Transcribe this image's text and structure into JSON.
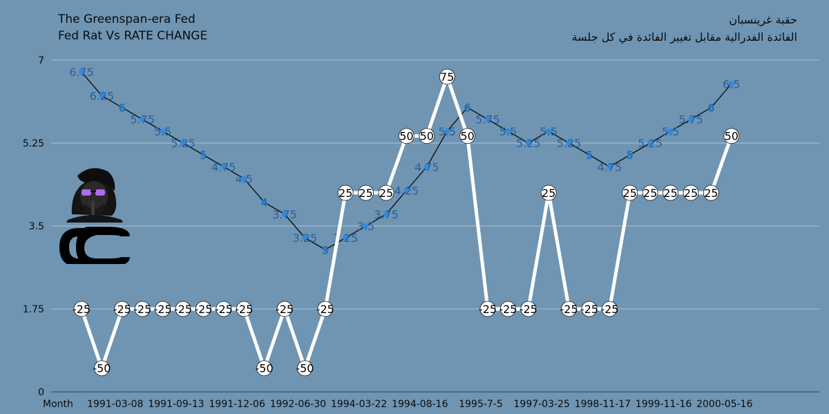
{
  "header": {
    "title_en_line1": "The Greenspan-era Fed",
    "title_en_line2": "Fed Rat Vs RATE CHANGE",
    "title_ar_line1": "حقبة غرينسبان",
    "title_ar_line2": "الفائدة الفدرالية مقابل تغيير الفائدة في كل جلسة"
  },
  "colors": {
    "background": "#6f95b3",
    "rate_line": "#111111",
    "rate_marker": "#2f8be0",
    "rate_label": "#2a5f9e",
    "change_line": "#ffffff",
    "change_marker_fill": "#ffffff",
    "change_label": "#000000",
    "gridline": "#c9d8e4"
  },
  "logo": {
    "icon": "host-avatar-logo-icon"
  },
  "chart_data": {
    "type": "line",
    "xlabel": "Month",
    "ylabel": "",
    "ylim": [
      0,
      7
    ],
    "yticks": [
      0,
      1.75,
      3.5,
      5.25,
      7
    ],
    "ytick_labels": [
      "0",
      "1.75",
      "3.5",
      "5.25",
      "7"
    ],
    "grid": true,
    "x_tick_labels": [
      "1991-03-08",
      "1991-09-13",
      "1991-12-06",
      "1992-06-30",
      "1994-03-22",
      "1994-08-16",
      "1995-7-5",
      "1997-03-25",
      "1998-11-17",
      "1999-11-16",
      "2000-05-16"
    ],
    "series": [
      {
        "values": [
          6.75,
          6.25,
          6,
          5.75,
          5.5,
          5.25,
          5,
          4.75,
          4.5,
          4,
          3.75,
          3.25,
          3,
          3.25,
          3.5,
          3.75,
          4.25,
          4.75,
          5.5,
          6,
          5.75,
          5.5,
          5.25,
          5.5,
          5.25,
          5,
          4.75,
          5,
          5.25,
          5.5,
          5.75,
          6,
          6.5
        ],
        "labels": [
          "6.75",
          "6.25",
          "6",
          "5.75",
          "5.5",
          "5.25",
          "5",
          "4.75",
          "4.5",
          "4",
          "3.75",
          "3.25",
          "3",
          "3.25",
          "3.5",
          "3.75",
          "4.25",
          "4.75",
          "5.5",
          "6",
          "5.75",
          "5.5",
          "5.25",
          "5.5",
          "5.25",
          "5",
          "4.75",
          "5",
          "5.25",
          "5.5",
          "5.75",
          "6",
          "6.5"
        ]
      },
      {
        "values": [
          1.75,
          0.5,
          1.75,
          1.75,
          1.75,
          1.75,
          1.75,
          1.75,
          1.75,
          0.5,
          1.75,
          0.5,
          1.75,
          4.2,
          4.2,
          4.2,
          5.4,
          5.4,
          6.65,
          5.4,
          1.75,
          1.75,
          1.75,
          4.2,
          1.75,
          1.75,
          1.75,
          4.2,
          4.2,
          4.2,
          4.2,
          4.2,
          5.4
        ],
        "labels": [
          "-25",
          "-50",
          "-25",
          "-25",
          "-25",
          "-25",
          "-25",
          "-25",
          "-25",
          "-50",
          "-25",
          "-50",
          "-25",
          "25",
          "25",
          "25",
          "50",
          "50",
          "75",
          "50",
          "-25",
          "-25",
          "-25",
          "25",
          "-25",
          "-25",
          "-25",
          "25",
          "25",
          "25",
          "25",
          "25",
          "50"
        ]
      }
    ]
  }
}
